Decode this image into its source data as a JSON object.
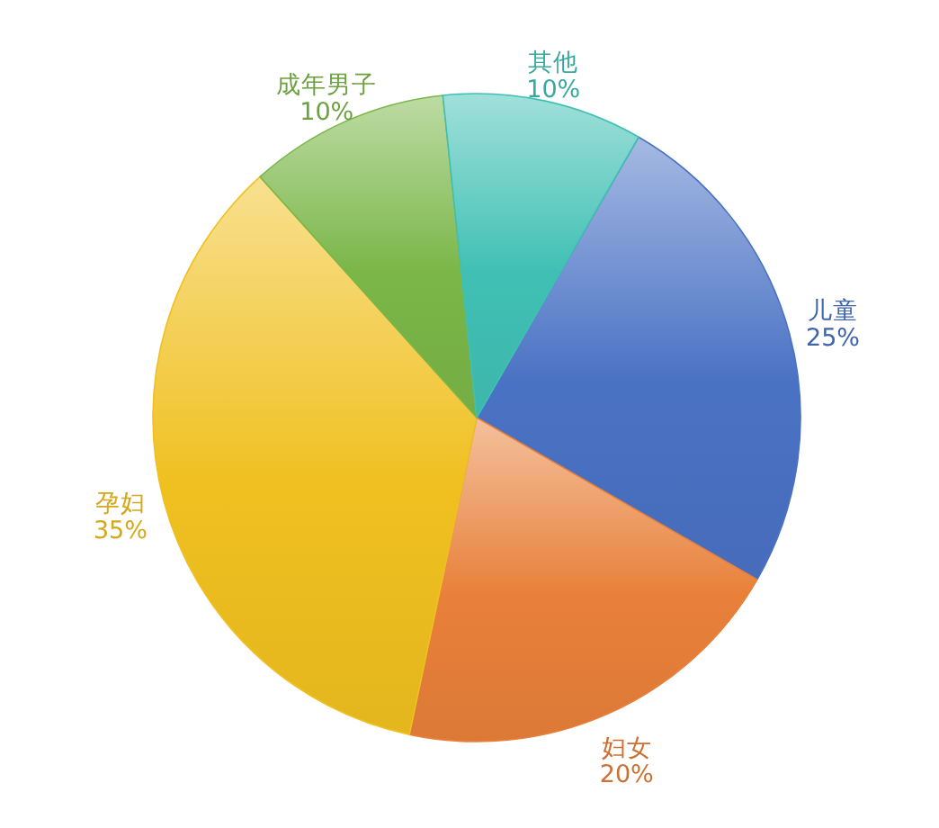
{
  "chart_data": {
    "type": "pie",
    "categories": [
      "儿童",
      "妇女",
      "孕妇",
      "成年男子",
      "其他"
    ],
    "values": [
      25,
      20,
      35,
      10,
      10
    ],
    "value_labels": [
      "25%",
      "20%",
      "35%",
      "10%",
      "10%"
    ],
    "colors": [
      "#4a72c4",
      "#e8803a",
      "#f0c020",
      "#7ab648",
      "#40c0b4"
    ]
  }
}
